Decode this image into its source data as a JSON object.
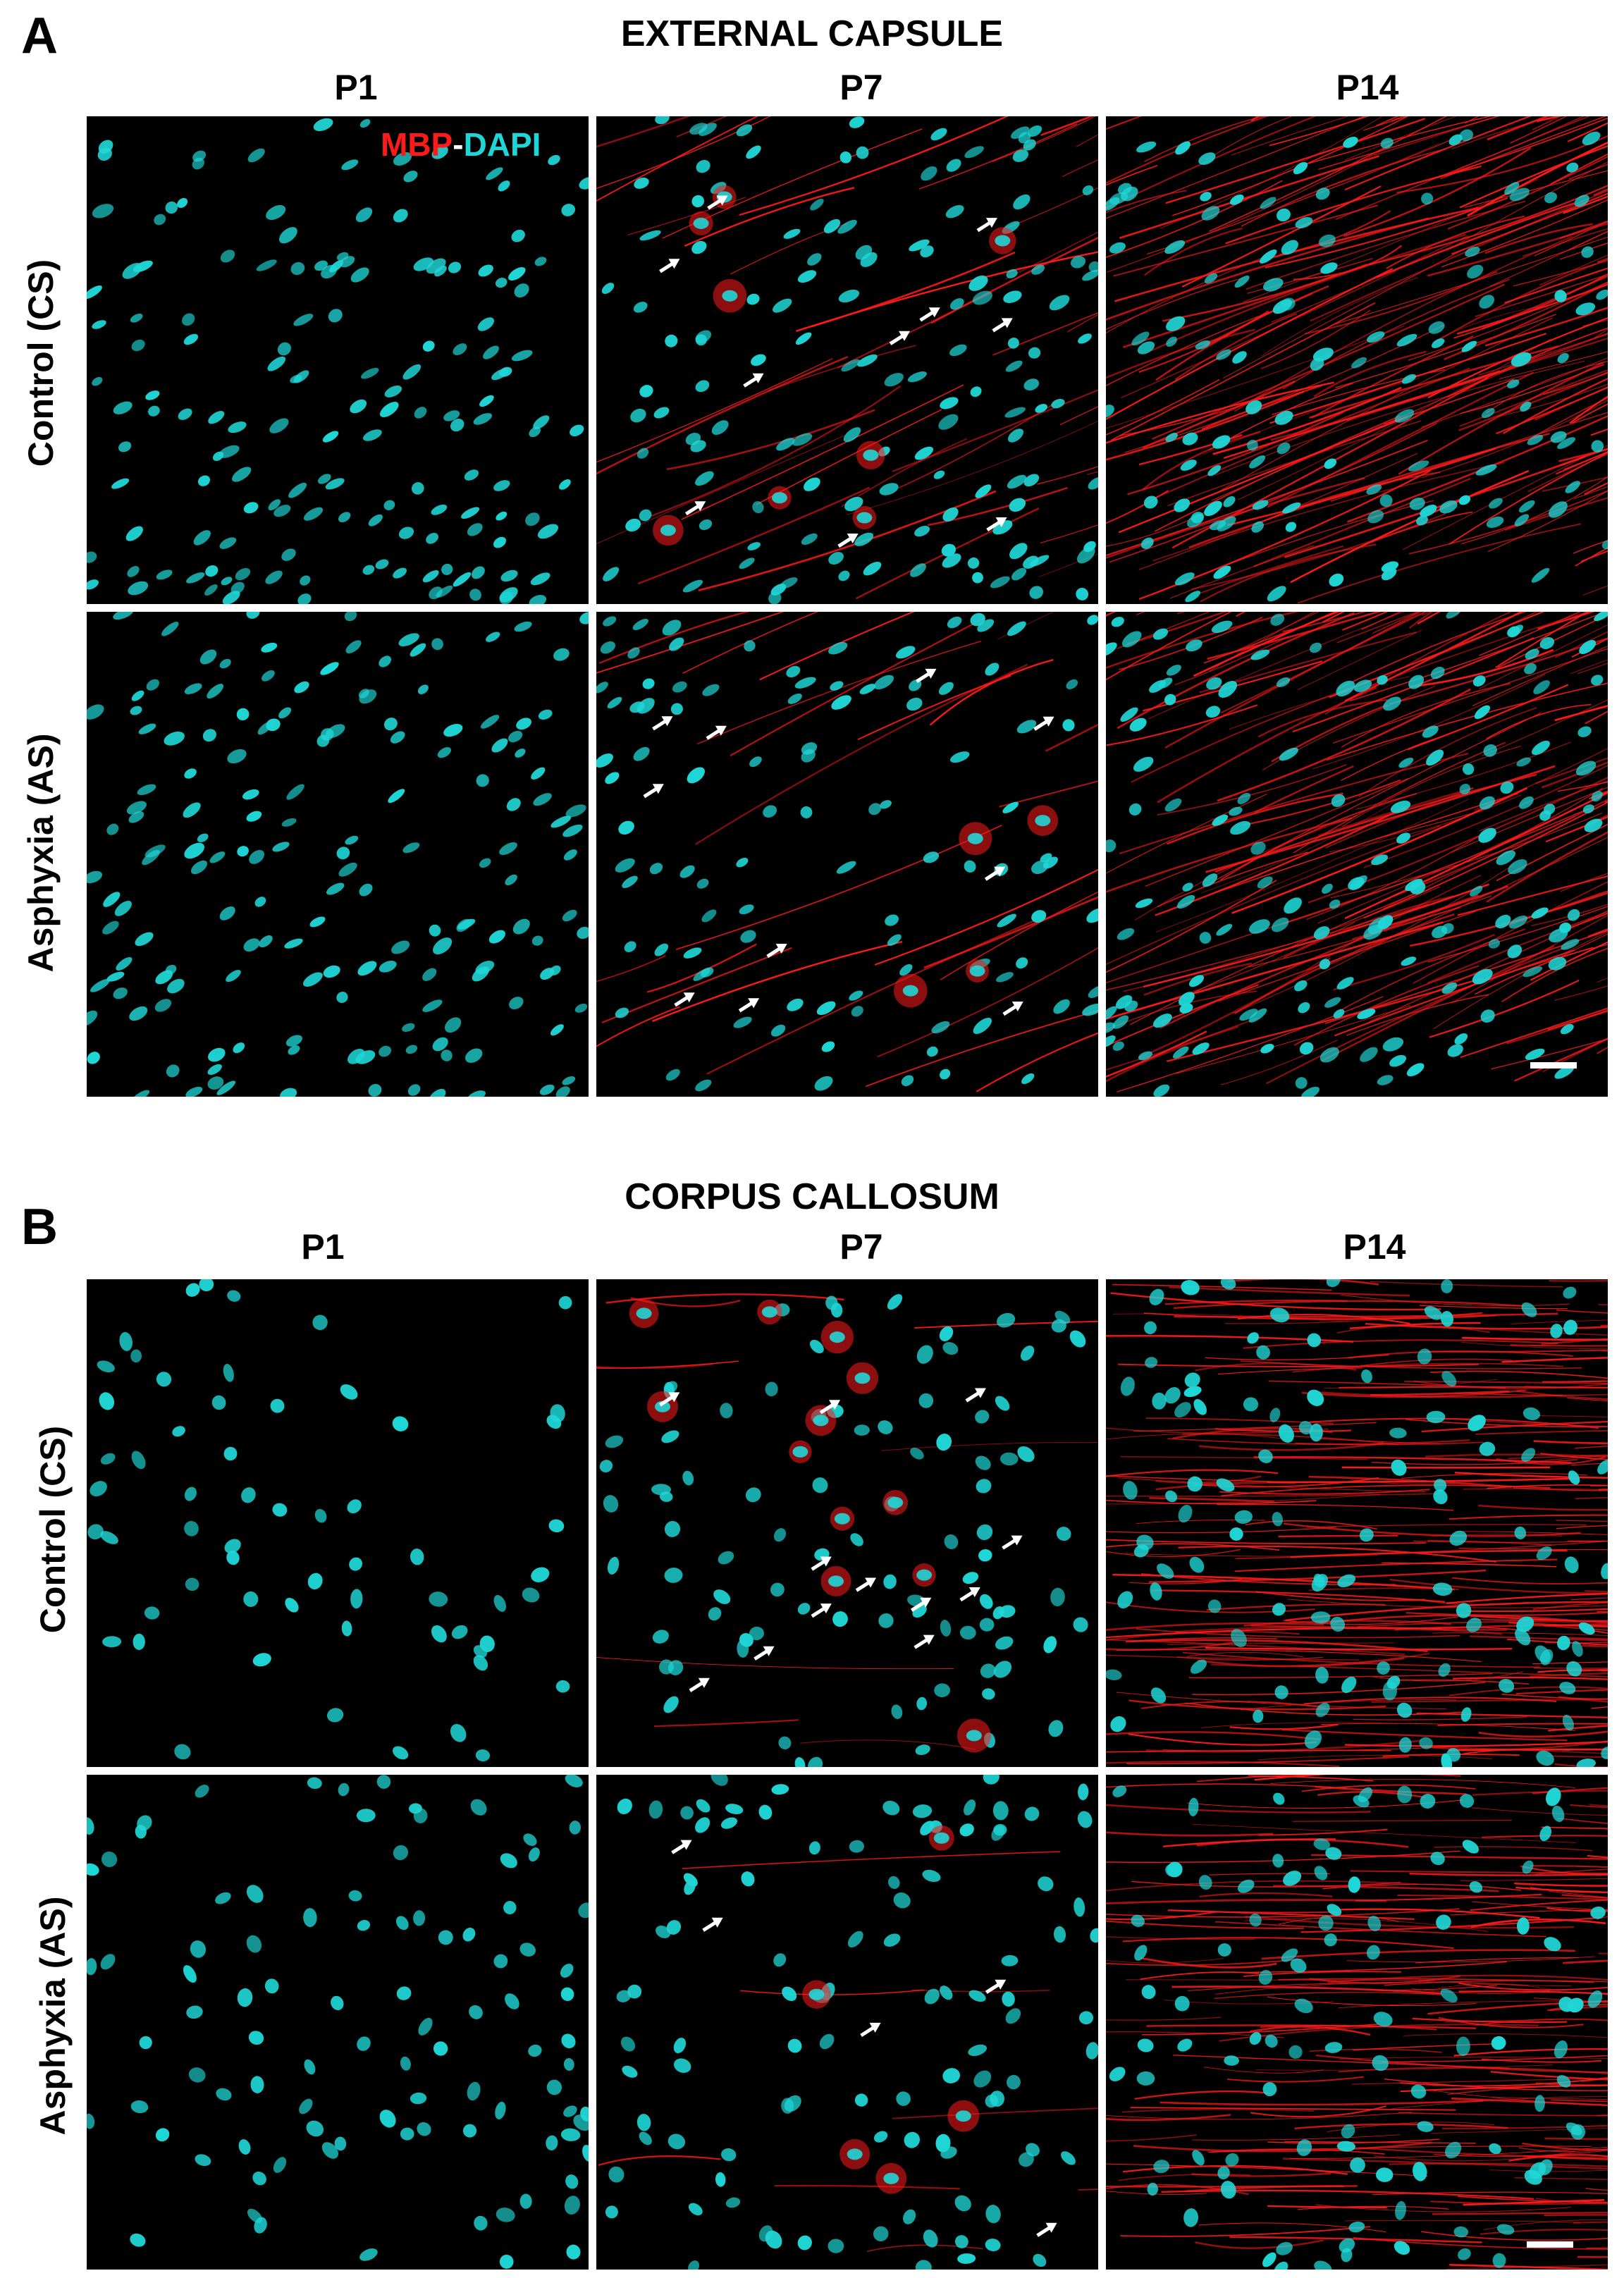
{
  "figure": {
    "panel_a": {
      "letter": "A",
      "title": "EXTERNAL CAPSULE",
      "columns": [
        "P1",
        "P7",
        "P14"
      ],
      "rows": [
        "Control (CS)",
        "Asphyxia (AS)"
      ],
      "legend": {
        "marker1": "MBP",
        "separator": "-",
        "marker2": "DAPI"
      }
    },
    "panel_b": {
      "letter": "B",
      "title": "CORPUS CALLOSUM",
      "columns": [
        "P1",
        "P7",
        "P14"
      ],
      "rows": [
        "Control (CS)",
        "Asphyxia (AS)"
      ]
    }
  },
  "colors": {
    "mbp": "#ff1a1a",
    "dapi": "#1fd6d6",
    "background": "#000000",
    "arrow": "#ffffff"
  }
}
